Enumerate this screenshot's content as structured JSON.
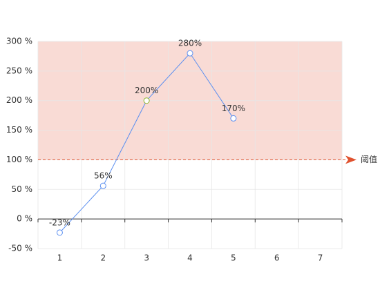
{
  "chart_data": {
    "type": "line",
    "categories": [
      "1",
      "2",
      "3",
      "4",
      "5",
      "6",
      "7"
    ],
    "values": [
      -23,
      56,
      200,
      280,
      170,
      null,
      null
    ],
    "value_labels": [
      "-23%",
      "56%",
      "200%",
      "280%",
      "170%",
      null,
      null
    ],
    "color": "#5b8ff0",
    "point_colors": [
      "#5b8ff0",
      "#5b8ff0",
      "#8bb82d",
      "#5b8ff0",
      "#5b8ff0",
      null,
      null
    ],
    "ylim": [
      -50,
      300
    ],
    "yticks": [
      {
        "value": -50,
        "label": "-50 %"
      },
      {
        "value": 0,
        "label": "0 %"
      },
      {
        "value": 50,
        "label": "50 %"
      },
      {
        "value": 100,
        "label": "100 %"
      },
      {
        "value": 150,
        "label": "150 %"
      },
      {
        "value": 200,
        "label": "200 %"
      },
      {
        "value": 250,
        "label": "250 %"
      },
      {
        "value": 300,
        "label": "300 %"
      }
    ],
    "grid": true,
    "mark_area": {
      "range": [
        100,
        300
      ],
      "color": "#f9dbd5"
    },
    "mark_line": {
      "value": 100,
      "label": "阈值",
      "color": "#e0522f"
    }
  }
}
